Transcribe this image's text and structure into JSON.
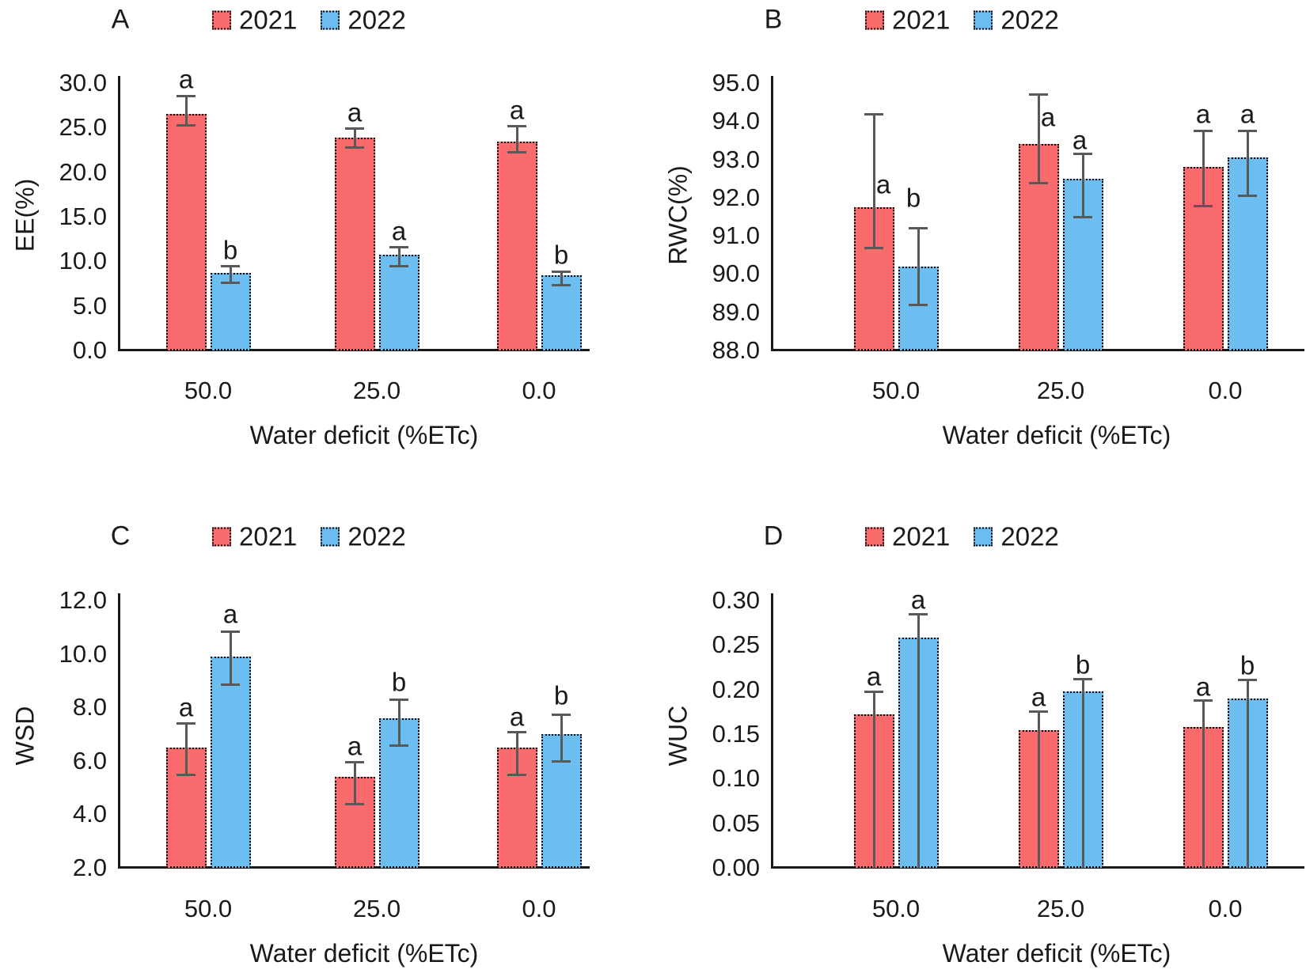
{
  "figure_title": "Water deficit bar chart figure, panels A-D, years 2021 and 2022",
  "colors": {
    "series_2021": "#F96B6D",
    "series_2022": "#6CBDF0",
    "error_bar": "#595959",
    "axis": "#1a1a1a"
  },
  "chart_data": [
    {
      "type": "bar",
      "panel_label": "A",
      "ylabel": "EE(%)",
      "xlabel": "Water deficit (%ETc)",
      "ylim": [
        0,
        30
      ],
      "yticks": [
        {
          "label": "30.0",
          "v": 30
        },
        {
          "label": "25.0",
          "v": 25
        },
        {
          "label": "20.0",
          "v": 20
        },
        {
          "label": "15.0",
          "v": 15
        },
        {
          "label": "10.0",
          "v": 10
        },
        {
          "label": "5.0",
          "v": 5
        },
        {
          "label": "0.0",
          "v": 0
        }
      ],
      "categories": [
        "50.0",
        "25.0",
        "0.0"
      ],
      "legend_position": "top",
      "grid": false,
      "series": [
        {
          "name": "2021",
          "color": "#F96B6D",
          "values": [
            26.5,
            23.9,
            23.4
          ],
          "err_up": [
            2.1,
            1.0,
            1.8
          ],
          "err_down": [
            1.2,
            1.1,
            1.1
          ],
          "letters": [
            "a",
            "a",
            "a"
          ],
          "letter_y": [
            30.4,
            26.7,
            27.0
          ],
          "letter_dx": [
            0,
            0,
            0
          ]
        },
        {
          "name": "2022",
          "color": "#6CBDF0",
          "values": [
            8.7,
            10.7,
            8.4
          ],
          "err_up": [
            0.8,
            0.95,
            0.5
          ],
          "err_down": [
            1.1,
            1.2,
            1.0
          ],
          "letters": [
            "b",
            "a",
            "b"
          ],
          "letter_y": [
            11.3,
            13.4,
            10.7
          ],
          "letter_dx": [
            0,
            0,
            0
          ]
        }
      ]
    },
    {
      "type": "bar",
      "panel_label": "B",
      "ylabel": "RWC(%)",
      "xlabel": "Water deficit (%ETc)",
      "ylim": [
        88,
        95
      ],
      "yticks": [
        {
          "label": "95.0",
          "v": 95
        },
        {
          "label": "94.0",
          "v": 94
        },
        {
          "label": "93.0",
          "v": 93
        },
        {
          "label": "92.0",
          "v": 92
        },
        {
          "label": "91.0",
          "v": 91
        },
        {
          "label": "90.0",
          "v": 90
        },
        {
          "label": "89.0",
          "v": 89
        },
        {
          "label": "88.0",
          "v": 88
        }
      ],
      "categories": [
        "50.0",
        "25.0",
        "0.0"
      ],
      "legend_position": "top",
      "grid": false,
      "series": [
        {
          "name": "2021",
          "color": "#F96B6D",
          "values": [
            91.75,
            93.4,
            92.8
          ],
          "err_up": [
            2.45,
            1.3,
            0.95
          ],
          "err_down": [
            1.05,
            1.0,
            1.0
          ],
          "letters": [
            "a",
            "a",
            "a"
          ],
          "letter_y": [
            92.35,
            94.1,
            94.2
          ],
          "letter_dx": [
            12,
            12,
            0
          ]
        },
        {
          "name": "2022",
          "color": "#6CBDF0",
          "values": [
            90.2,
            92.5,
            93.05
          ],
          "err_up": [
            1.0,
            0.65,
            0.7
          ],
          "err_down": [
            1.0,
            1.0,
            1.0
          ],
          "letters": [
            "b",
            "a",
            "a"
          ],
          "letter_y": [
            92.0,
            93.5,
            94.2
          ],
          "letter_dx": [
            -6,
            -4,
            0
          ]
        }
      ]
    },
    {
      "type": "bar",
      "panel_label": "C",
      "ylabel": "WSD",
      "xlabel": "Water deficit (%ETc)",
      "ylim": [
        2,
        12
      ],
      "yticks": [
        {
          "label": "12.0",
          "v": 12
        },
        {
          "label": "10.0",
          "v": 10
        },
        {
          "label": "8.0",
          "v": 8
        },
        {
          "label": "6.0",
          "v": 6
        },
        {
          "label": "4.0",
          "v": 4
        },
        {
          "label": "2.0",
          "v": 2
        }
      ],
      "categories": [
        "50.0",
        "25.0",
        "0.0"
      ],
      "legend_position": "top",
      "grid": false,
      "series": [
        {
          "name": "2021",
          "color": "#F96B6D",
          "values": [
            6.5,
            5.4,
            6.5
          ],
          "err_up": [
            0.9,
            0.55,
            0.6
          ],
          "err_down": [
            1.0,
            1.0,
            1.0
          ],
          "letters": [
            "a",
            "a",
            "a"
          ],
          "letter_y": [
            8.0,
            6.55,
            7.65
          ],
          "letter_dx": [
            0,
            0,
            0
          ]
        },
        {
          "name": "2022",
          "color": "#6CBDF0",
          "values": [
            9.9,
            7.6,
            7.0
          ],
          "err_up": [
            0.95,
            0.7,
            0.75
          ],
          "err_down": [
            1.05,
            1.0,
            1.0
          ],
          "letters": [
            "a",
            "b",
            "b"
          ],
          "letter_y": [
            11.5,
            8.95,
            8.45
          ],
          "letter_dx": [
            0,
            0,
            0
          ]
        }
      ]
    },
    {
      "type": "bar",
      "panel_label": "D",
      "ylabel": "WUC",
      "xlabel": "Water deficit (%ETc)",
      "ylim": [
        0,
        0.3
      ],
      "yticks": [
        {
          "label": "0.30",
          "v": 0.3
        },
        {
          "label": "0.25",
          "v": 0.25
        },
        {
          "label": "0.20",
          "v": 0.2
        },
        {
          "label": "0.15",
          "v": 0.15
        },
        {
          "label": "0.10",
          "v": 0.1
        },
        {
          "label": "0.05",
          "v": 0.05
        },
        {
          "label": "0.00",
          "v": 0.0
        }
      ],
      "categories": [
        "50.0",
        "25.0",
        "0.0"
      ],
      "legend_position": "top",
      "grid": false,
      "series": [
        {
          "name": "2021",
          "color": "#F96B6D",
          "values": [
            0.172,
            0.154,
            0.158
          ],
          "err_up": [
            0.026,
            0.022,
            0.03
          ],
          "err_down": [
            0.172,
            0.154,
            0.158
          ],
          "letters": [
            "a",
            "a",
            "a"
          ],
          "letter_y": [
            0.215,
            0.192,
            0.203
          ],
          "letter_dx": [
            0,
            0,
            0
          ]
        },
        {
          "name": "2022",
          "color": "#6CBDF0",
          "values": [
            0.258,
            0.198,
            0.19
          ],
          "err_up": [
            0.027,
            0.014,
            0.021
          ],
          "err_down": [
            0.258,
            0.198,
            0.19
          ],
          "letters": [
            "a",
            "b",
            "b"
          ],
          "letter_y": [
            0.301,
            0.228,
            0.227
          ],
          "letter_dx": [
            0,
            0,
            0
          ]
        }
      ]
    }
  ]
}
